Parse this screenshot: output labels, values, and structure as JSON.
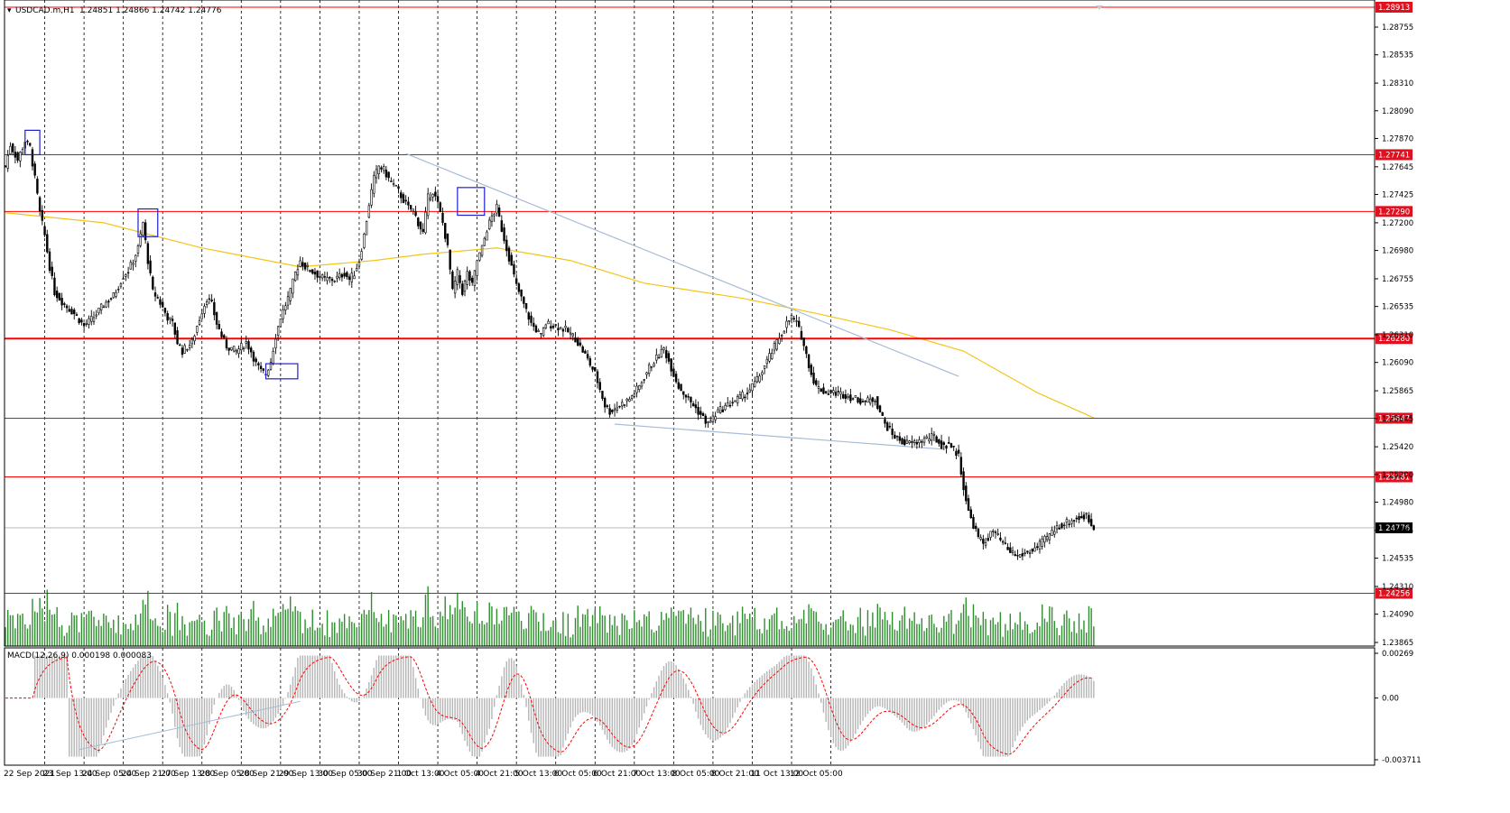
{
  "header": {
    "symbol_label": "USDCAD.m,H1",
    "ohlc": "1.24851 1.24866 1.24742 1.24776"
  },
  "macd": {
    "label": "MACD(12,26,9) 0.000198 0.000083",
    "ticks": [
      "0.00269",
      "0.00",
      "-0.003711"
    ]
  },
  "colors": {
    "candle": "#000000",
    "level_line": "#ff0000",
    "level_label_bg": "#e0101f",
    "ma_line": "#f3c517",
    "trendline": "#a6bcd8",
    "volume": "#2f8f2f",
    "macd_hist": "#b5b5b5",
    "macd_signal": "#ff0000",
    "pattern_box": "#1f1fcc",
    "grid": "#000000"
  },
  "chart_data": {
    "type": "candlestick",
    "symbol": "USDCAD.m",
    "timeframe": "H1",
    "price_axis": {
      "range": [
        1.23865,
        1.28913
      ],
      "ticks": [
        "1.28755",
        "1.28535",
        "1.28310",
        "1.28090",
        "1.27870",
        "1.27645",
        "1.27425",
        "1.27200",
        "1.26980",
        "1.26755",
        "1.26535",
        "1.26310",
        "1.26090",
        "1.25865",
        "1.25645",
        "1.25420",
        "1.25200",
        "1.24980",
        "1.24755",
        "1.24535",
        "1.24310",
        "1.24090",
        "1.23865"
      ]
    },
    "time_axis": {
      "labels": [
        "22 Sep 2021",
        "23 Sep 13:00",
        "24 Sep 05:00",
        "24 Sep 21:00",
        "27 Sep 13:00",
        "28 Sep 05:00",
        "28 Sep 21:00",
        "29 Sep 13:00",
        "30 Sep 05:00",
        "30 Sep 21:00",
        "1 Oct 13:00",
        "4 Oct 05:00",
        "4 Oct 21:00",
        "5 Oct 13:00",
        "6 Oct 05:00",
        "6 Oct 21:00",
        "7 Oct 13:00",
        "8 Oct 05:00",
        "8 Oct 21:00",
        "11 Oct 13:00",
        "12 Oct 05:00"
      ],
      "bars_per_label": 16
    },
    "horizontal_levels": [
      {
        "value": 1.28913,
        "label": "1.28913"
      },
      {
        "value": 1.27741,
        "label": "1.27741"
      },
      {
        "value": 1.2729,
        "label": "1.27290"
      },
      {
        "value": 1.2628,
        "label": "1.26280"
      },
      {
        "value": 1.25647,
        "label": "1.25647"
      },
      {
        "value": 1.25181,
        "label": "1.25181"
      },
      {
        "value": 1.24256,
        "label": "1.24256"
      }
    ],
    "current_price": {
      "value": 1.24776,
      "label": "1.24776"
    },
    "close_path": [
      [
        0,
        1.2765
      ],
      [
        2,
        1.2782
      ],
      [
        5,
        1.277
      ],
      [
        8,
        1.2785
      ],
      [
        10,
        1.278
      ],
      [
        12,
        1.2755
      ],
      [
        14,
        1.2728
      ],
      [
        16,
        1.271
      ],
      [
        18,
        1.2685
      ],
      [
        20,
        1.2665
      ],
      [
        24,
        1.2655
      ],
      [
        28,
        1.2648
      ],
      [
        32,
        1.2638
      ],
      [
        36,
        1.2645
      ],
      [
        40,
        1.2655
      ],
      [
        44,
        1.2662
      ],
      [
        48,
        1.2678
      ],
      [
        50,
        1.2682
      ],
      [
        52,
        1.269
      ],
      [
        54,
        1.27
      ],
      [
        56,
        1.272
      ],
      [
        58,
        1.269
      ],
      [
        60,
        1.2665
      ],
      [
        62,
        1.266
      ],
      [
        66,
        1.2645
      ],
      [
        68,
        1.264
      ],
      [
        70,
        1.2625
      ],
      [
        72,
        1.2618
      ],
      [
        76,
        1.2625
      ],
      [
        78,
        1.2638
      ],
      [
        80,
        1.265
      ],
      [
        82,
        1.266
      ],
      [
        84,
        1.2655
      ],
      [
        86,
        1.264
      ],
      [
        88,
        1.263
      ],
      [
        90,
        1.2622
      ],
      [
        94,
        1.2618
      ],
      [
        98,
        1.2625
      ],
      [
        100,
        1.2618
      ],
      [
        102,
        1.2608
      ],
      [
        104,
        1.2602
      ],
      [
        106,
        1.26
      ],
      [
        108,
        1.261
      ],
      [
        110,
        1.263
      ],
      [
        112,
        1.2645
      ],
      [
        114,
        1.2655
      ],
      [
        116,
        1.2665
      ],
      [
        118,
        1.268
      ],
      [
        120,
        1.269
      ],
      [
        122,
        1.2685
      ],
      [
        126,
        1.268
      ],
      [
        130,
        1.2675
      ],
      [
        134,
        1.2675
      ],
      [
        138,
        1.268
      ],
      [
        140,
        1.2675
      ],
      [
        142,
        1.268
      ],
      [
        144,
        1.269
      ],
      [
        146,
        1.271
      ],
      [
        148,
        1.2735
      ],
      [
        150,
        1.2755
      ],
      [
        152,
        1.2765
      ],
      [
        154,
        1.2762
      ],
      [
        156,
        1.2755
      ],
      [
        158,
        1.275
      ],
      [
        160,
        1.2745
      ],
      [
        162,
        1.2738
      ],
      [
        164,
        1.2732
      ],
      [
        166,
        1.273
      ],
      [
        168,
        1.272
      ],
      [
        170,
        1.2712
      ],
      [
        172,
        1.274
      ],
      [
        174,
        1.2745
      ],
      [
        176,
        1.2735
      ],
      [
        178,
        1.272
      ],
      [
        180,
        1.27
      ],
      [
        182,
        1.2665
      ],
      [
        184,
        1.268
      ],
      [
        186,
        1.2665
      ],
      [
        188,
        1.268
      ],
      [
        190,
        1.267
      ],
      [
        192,
        1.269
      ],
      [
        194,
        1.27
      ],
      [
        196,
        1.2715
      ],
      [
        198,
        1.2725
      ],
      [
        200,
        1.2732
      ],
      [
        202,
        1.2715
      ],
      [
        204,
        1.27
      ],
      [
        206,
        1.2685
      ],
      [
        208,
        1.267
      ],
      [
        210,
        1.266
      ],
      [
        212,
        1.265
      ],
      [
        214,
        1.264
      ],
      [
        216,
        1.2635
      ],
      [
        218,
        1.263
      ],
      [
        220,
        1.264
      ],
      [
        224,
        1.2638
      ],
      [
        228,
        1.2635
      ],
      [
        232,
        1.2628
      ],
      [
        236,
        1.2615
      ],
      [
        240,
        1.26
      ],
      [
        242,
        1.2588
      ],
      [
        244,
        1.2575
      ],
      [
        246,
        1.257
      ],
      [
        250,
        1.2575
      ],
      [
        254,
        1.258
      ],
      [
        258,
        1.259
      ],
      [
        262,
        1.2605
      ],
      [
        266,
        1.2615
      ],
      [
        268,
        1.262
      ],
      [
        270,
        1.261
      ],
      [
        272,
        1.26
      ],
      [
        274,
        1.259
      ],
      [
        278,
        1.258
      ],
      [
        282,
        1.257
      ],
      [
        286,
        1.256
      ],
      [
        290,
        1.257
      ],
      [
        294,
        1.2575
      ],
      [
        298,
        1.258
      ],
      [
        302,
        1.2585
      ],
      [
        306,
        1.2595
      ],
      [
        310,
        1.261
      ],
      [
        314,
        1.2625
      ],
      [
        318,
        1.264
      ],
      [
        320,
        1.2645
      ],
      [
        322,
        1.264
      ],
      [
        324,
        1.263
      ],
      [
        326,
        1.2615
      ],
      [
        328,
        1.26
      ],
      [
        330,
        1.259
      ],
      [
        334,
        1.2585
      ],
      [
        338,
        1.2585
      ],
      [
        342,
        1.2583
      ],
      [
        346,
        1.258
      ],
      [
        350,
        1.2578
      ],
      [
        354,
        1.258
      ],
      [
        356,
        1.257
      ],
      [
        358,
        1.256
      ],
      [
        362,
        1.255
      ],
      [
        366,
        1.2545
      ],
      [
        370,
        1.2545
      ],
      [
        374,
        1.2548
      ],
      [
        378,
        1.255
      ],
      [
        380,
        1.2545
      ],
      [
        382,
        1.2542
      ],
      [
        384,
        1.2545
      ],
      [
        386,
        1.254
      ],
      [
        388,
        1.2535
      ],
      [
        390,
        1.251
      ],
      [
        392,
        1.249
      ],
      [
        394,
        1.248
      ],
      [
        396,
        1.247
      ],
      [
        398,
        1.2465
      ],
      [
        400,
        1.247
      ],
      [
        402,
        1.2475
      ],
      [
        404,
        1.247
      ],
      [
        408,
        1.246
      ],
      [
        412,
        1.2455
      ],
      [
        416,
        1.2458
      ],
      [
        420,
        1.2462
      ],
      [
        424,
        1.247
      ],
      [
        428,
        1.2478
      ],
      [
        432,
        1.2482
      ],
      [
        436,
        1.2485
      ],
      [
        440,
        1.2487
      ],
      [
        442,
        1.248
      ],
      [
        443,
        1.24776
      ]
    ],
    "total_bars": 444,
    "moving_average": {
      "color": "#f3c517",
      "points": [
        [
          0,
          1.2728
        ],
        [
          40,
          1.272
        ],
        [
          80,
          1.27
        ],
        [
          120,
          1.2685
        ],
        [
          150,
          1.269
        ],
        [
          170,
          1.2695
        ],
        [
          200,
          1.27
        ],
        [
          230,
          1.269
        ],
        [
          260,
          1.2672
        ],
        [
          300,
          1.266
        ],
        [
          330,
          1.2648
        ],
        [
          360,
          1.2635
        ],
        [
          390,
          1.2618
        ],
        [
          420,
          1.2585
        ],
        [
          443,
          1.2565
        ]
      ]
    },
    "trendlines": [
      {
        "from": [
          163,
          1.2775
        ],
        "to": [
          388,
          1.2598
        ]
      },
      {
        "from": [
          248,
          1.256
        ],
        "to": [
          382,
          1.254
        ]
      }
    ],
    "pattern_boxes": [
      {
        "bars": [
          8,
          14
        ],
        "price": [
          1.27741,
          1.27935
        ]
      },
      {
        "bars": [
          54,
          62
        ],
        "price": [
          1.2709,
          1.2731
        ]
      },
      {
        "bars": [
          106,
          119
        ],
        "price": [
          1.2596,
          1.2608
        ]
      },
      {
        "bars": [
          184,
          195
        ],
        "price": [
          1.2726,
          1.2748
        ]
      }
    ],
    "volume": {
      "panel": "lower section of main chart",
      "bars": "one green bar per hourly candle"
    },
    "macd": {
      "params": [
        12,
        26,
        9
      ],
      "main": 0.000198,
      "signal": 8.3e-05,
      "range": [
        -0.003711,
        0.00269
      ]
    }
  }
}
